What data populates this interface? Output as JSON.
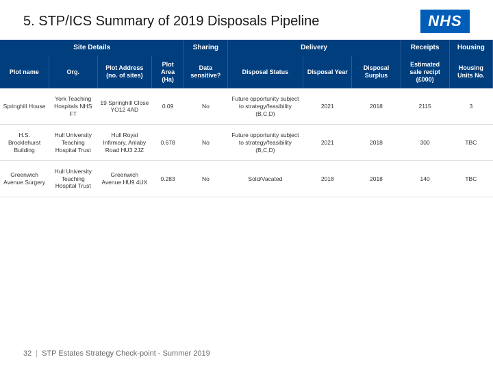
{
  "header": {
    "title": "5. STP/ICS Summary of 2019 Disposals Pipeline",
    "logo_text": "NHS",
    "logo_bg": "#005eb8"
  },
  "table": {
    "groups": [
      {
        "label": "Site Details",
        "span": 4
      },
      {
        "label": "Sharing",
        "span": 1
      },
      {
        "label": "Delivery",
        "span": 3
      },
      {
        "label": "Receipts",
        "span": 1
      },
      {
        "label": "Housing",
        "span": 1
      }
    ],
    "columns": [
      "Plot name",
      "Org.",
      "Plot Address (no. of sites)",
      "Plot Area (Ha)",
      "Data sensitive?",
      "Disposal Status",
      "Disposal Year",
      "Disposal Surplus",
      "Estimated sale recipt (£000)",
      "Housing Units No."
    ],
    "rows": [
      {
        "plot": "Springhill House",
        "org": "York Teaching Hospitals NHS FT",
        "addr": "19 Springhill Close YO12 4AD",
        "area": "0.09",
        "sensitive": "No",
        "status": "Future opportunity subject to strategy/feasibility (B,C,D)",
        "dyear": "2021",
        "dsurp": "2018",
        "receipt": "2115",
        "housing": "3"
      },
      {
        "plot": "H.S. Brocklehurst Building",
        "org": "Hull University Teaching Hospital Trust",
        "addr": "Hull Royal Infirmary, Anlaby Road HU3 2JZ",
        "area": "0.678",
        "sensitive": "No",
        "status": "Future opportunity subject to strategy/feasibility (B,C,D)",
        "dyear": "2021",
        "dsurp": "2018",
        "receipt": "300",
        "housing": "TBC"
      },
      {
        "plot": "Greenwich Avenue Surgery",
        "org": "Hull University Teaching Hospital Trust",
        "addr": "Greenwich Avenue HU9 4UX",
        "area": "0.283",
        "sensitive": "No",
        "status": "Sold/Vacated",
        "dyear": "2018",
        "dsurp": "2018",
        "receipt": "140",
        "housing": "TBC"
      }
    ]
  },
  "footer": {
    "page": "32",
    "text": "STP Estates Strategy Check-point - Summer 2019"
  }
}
